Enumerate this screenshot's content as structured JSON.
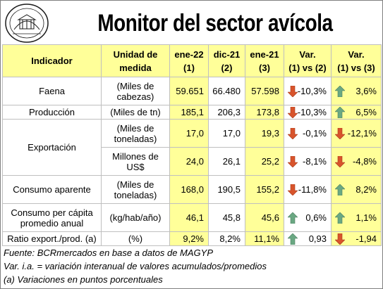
{
  "title": "Monitor del sector avícola",
  "seal_text": "BOLSA DE COMERCIO DE ROSARIO",
  "header": {
    "indicador": "Indicador",
    "unidad_l1": "Unidad de",
    "unidad_l2": "medida",
    "c1_l1": "ene-22",
    "c1_l2": "(1)",
    "c2_l1": "dic-21",
    "c2_l2": "(2)",
    "c3_l1": "ene-21",
    "c3_l2": "(3)",
    "v1_l1": "Var.",
    "v1_l2": "(1) vs (2)",
    "v2_l1": "Var.",
    "v2_l2": "(1) vs (3)"
  },
  "rows": {
    "faena": {
      "label": "Faena",
      "unit_l1": "(Miles de",
      "unit_l2": "cabezas)",
      "c1": "59.651",
      "c2": "66.480",
      "c3": "57.598",
      "v1": "-10,3%",
      "v1_dir": "down",
      "v2": "3,6%",
      "v2_dir": "up"
    },
    "produccion": {
      "label": "Producción",
      "unit": "(Miles de tn)",
      "c1": "185,1",
      "c2": "206,3",
      "c3": "173,8",
      "v1": "-10,3%",
      "v1_dir": "down",
      "v2": "6,5%",
      "v2_dir": "up"
    },
    "exportacion": {
      "label": "Exportación",
      "a": {
        "unit_l1": "(Miles de",
        "unit_l2": "toneladas)",
        "c1": "17,0",
        "c2": "17,0",
        "c3": "19,3",
        "v1": "-0,1%",
        "v1_dir": "down",
        "v2": "-12,1%",
        "v2_dir": "down"
      },
      "b": {
        "unit_l1": "Millones de",
        "unit_l2": "US$",
        "c1": "24,0",
        "c2": "26,1",
        "c3": "25,2",
        "v1": "-8,1%",
        "v1_dir": "down",
        "v2": "-4,8%",
        "v2_dir": "down"
      }
    },
    "consumo": {
      "label": "Consumo aparente",
      "unit_l1": "(Miles de",
      "unit_l2": "toneladas)",
      "c1": "168,0",
      "c2": "190,5",
      "c3": "155,2",
      "v1": "-11,8%",
      "v1_dir": "down",
      "v2": "8,2%",
      "v2_dir": "up"
    },
    "percapita": {
      "label_l1": "Consumo per cápita",
      "label_l2": "promedio anual",
      "unit": "(kg/hab/año)",
      "c1": "46,1",
      "c2": "45,8",
      "c3": "45,6",
      "v1": "0,6%",
      "v1_dir": "up",
      "v2": "1,1%",
      "v2_dir": "up"
    },
    "ratio": {
      "label": "Ratio export./prod. (a)",
      "unit": "(%)",
      "c1": "9,2%",
      "c2": "8,2%",
      "c3": "11,1%",
      "v1": "0,93",
      "v1_dir": "up",
      "v2": "-1,94",
      "v2_dir": "down"
    }
  },
  "notes": {
    "fuente": "Fuente: BCRmercados en base a datos de MAGYP",
    "var": "Var. i.a. = variación interanual de valores acumulados/promedios",
    "a": "(a) Variaciones en puntos porcentuales"
  },
  "colors": {
    "header_fill": "#ffff99",
    "arrow_up": "#6aa883",
    "arrow_down": "#d8542c",
    "grid": "#bfbfbf"
  }
}
